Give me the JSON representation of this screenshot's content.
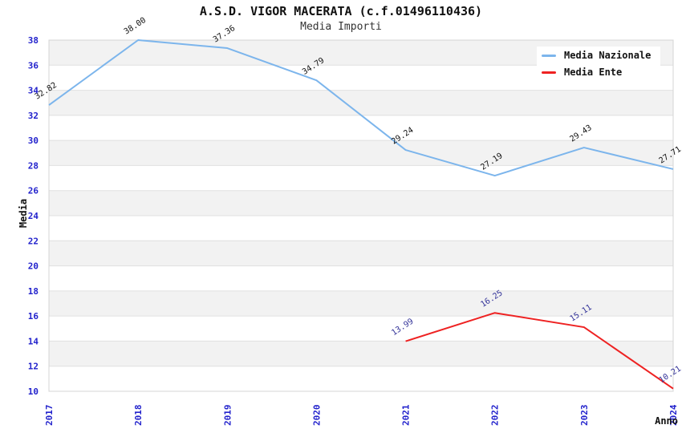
{
  "title": "A.S.D. VIGOR MACERATA (c.f.01496110436)",
  "subtitle": "Media Importi",
  "chart_data": {
    "type": "line",
    "x": [
      "2017",
      "2018",
      "2019",
      "2020",
      "2021",
      "2022",
      "2023",
      "2024"
    ],
    "xlabel": "Anno",
    "ylabel": "Media",
    "ylim": [
      10,
      38
    ],
    "ytick_step": 2,
    "series": [
      {
        "name": "Media Nazionale",
        "color": "#7cb5ec",
        "label_color": "#111111",
        "values": [
          32.82,
          38.0,
          37.36,
          34.79,
          29.24,
          27.19,
          29.43,
          27.71
        ]
      },
      {
        "name": "Media Ente",
        "color": "#ee2222",
        "label_color": "#333399",
        "values": [
          null,
          null,
          null,
          null,
          13.99,
          16.25,
          15.11,
          10.21
        ]
      }
    ],
    "legend_position": "top-right",
    "grid": "alternating-horizontal-bands",
    "band_color": "#f2f2f2",
    "gridline_color": "#e0e0e0",
    "frame_color": "#d4d4d4",
    "axis_tick_color": "#2222cc"
  }
}
